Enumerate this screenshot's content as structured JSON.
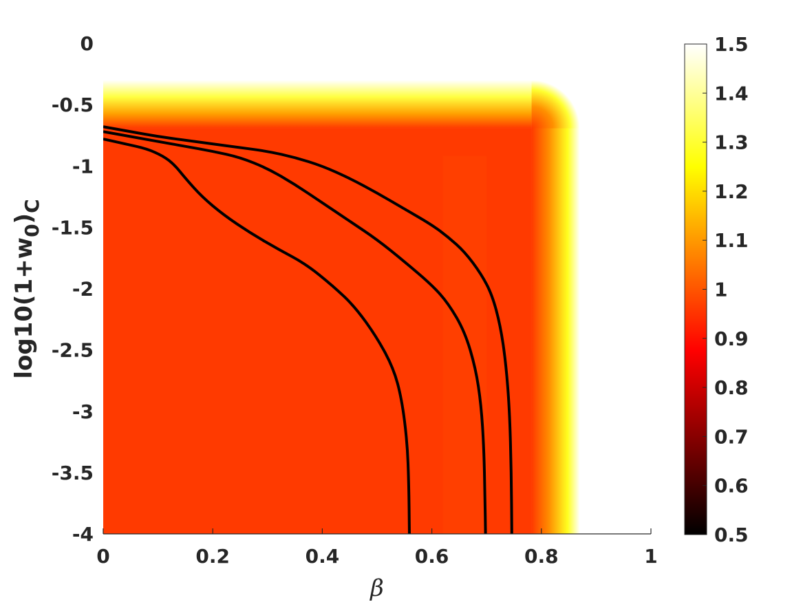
{
  "chart_data": {
    "type": "heatmap",
    "title": "",
    "xlabel": "β",
    "ylabel": {
      "base": "log10(1+w",
      "sub1": "0",
      "mid": ")",
      "sub2": "C"
    },
    "xlim": [
      0,
      1
    ],
    "ylim": [
      -4,
      0
    ],
    "x_ticks": [
      0,
      0.2,
      0.4,
      0.6,
      0.8,
      1
    ],
    "x_tick_labels": [
      "0",
      "0.2",
      "0.4",
      "0.6",
      "0.8",
      "1"
    ],
    "y_ticks": [
      0,
      -0.5,
      -1,
      -1.5,
      -2,
      -2.5,
      -3,
      -3.5,
      -4
    ],
    "y_tick_labels": [
      "0",
      "-0.5",
      "-1",
      "-1.5",
      "-2",
      "-2.5",
      "-3",
      "-3.5",
      "-4"
    ],
    "colorbar": {
      "colormap": "hot",
      "clim": [
        0.5,
        1.5
      ],
      "ticks": [
        1.5,
        1.4,
        1.3,
        1.2,
        1.1,
        1,
        0.9,
        0.8,
        0.7,
        0.6,
        0.5
      ],
      "tick_labels": [
        "1.5",
        "1.4",
        "1.3",
        "1.2",
        "1.1",
        "1",
        "0.9",
        "0.8",
        "0.7",
        "0.6",
        "0.5"
      ]
    },
    "field": {
      "interior_value": 1.0,
      "upper_boundary_log10": -0.3,
      "right_boundary_beta": 0.87,
      "background": "#ffffff"
    },
    "contours": [
      {
        "points": [
          [
            0,
            -0.68
          ],
          [
            0.05,
            -0.72
          ],
          [
            0.1,
            -0.76
          ],
          [
            0.15,
            -0.79
          ],
          [
            0.2,
            -0.82
          ],
          [
            0.25,
            -0.85
          ],
          [
            0.3,
            -0.88
          ],
          [
            0.35,
            -0.93
          ],
          [
            0.4,
            -1.0
          ],
          [
            0.45,
            -1.1
          ],
          [
            0.5,
            -1.22
          ],
          [
            0.55,
            -1.35
          ],
          [
            0.6,
            -1.48
          ],
          [
            0.63,
            -1.58
          ],
          [
            0.66,
            -1.7
          ],
          [
            0.69,
            -1.88
          ],
          [
            0.71,
            -2.05
          ],
          [
            0.725,
            -2.3
          ],
          [
            0.735,
            -2.6
          ],
          [
            0.742,
            -3.0
          ],
          [
            0.745,
            -3.5
          ],
          [
            0.746,
            -4.0
          ]
        ]
      },
      {
        "points": [
          [
            0,
            -0.72
          ],
          [
            0.05,
            -0.76
          ],
          [
            0.1,
            -0.8
          ],
          [
            0.15,
            -0.84
          ],
          [
            0.2,
            -0.88
          ],
          [
            0.25,
            -0.93
          ],
          [
            0.3,
            -1.02
          ],
          [
            0.35,
            -1.15
          ],
          [
            0.4,
            -1.3
          ],
          [
            0.45,
            -1.45
          ],
          [
            0.5,
            -1.6
          ],
          [
            0.55,
            -1.78
          ],
          [
            0.6,
            -1.97
          ],
          [
            0.63,
            -2.12
          ],
          [
            0.66,
            -2.35
          ],
          [
            0.68,
            -2.65
          ],
          [
            0.69,
            -2.95
          ],
          [
            0.695,
            -3.3
          ],
          [
            0.697,
            -3.7
          ],
          [
            0.698,
            -4.0
          ]
        ]
      },
      {
        "points": [
          [
            0,
            -0.78
          ],
          [
            0.04,
            -0.82
          ],
          [
            0.08,
            -0.86
          ],
          [
            0.11,
            -0.92
          ],
          [
            0.13,
            -0.99
          ],
          [
            0.15,
            -1.1
          ],
          [
            0.18,
            -1.25
          ],
          [
            0.22,
            -1.4
          ],
          [
            0.27,
            -1.55
          ],
          [
            0.32,
            -1.68
          ],
          [
            0.37,
            -1.8
          ],
          [
            0.42,
            -1.98
          ],
          [
            0.46,
            -2.15
          ],
          [
            0.5,
            -2.4
          ],
          [
            0.53,
            -2.65
          ],
          [
            0.545,
            -2.9
          ],
          [
            0.555,
            -3.25
          ],
          [
            0.558,
            -3.6
          ],
          [
            0.559,
            -4.0
          ]
        ]
      }
    ],
    "contour_color": "#000000",
    "legend": "none",
    "grid": false
  }
}
